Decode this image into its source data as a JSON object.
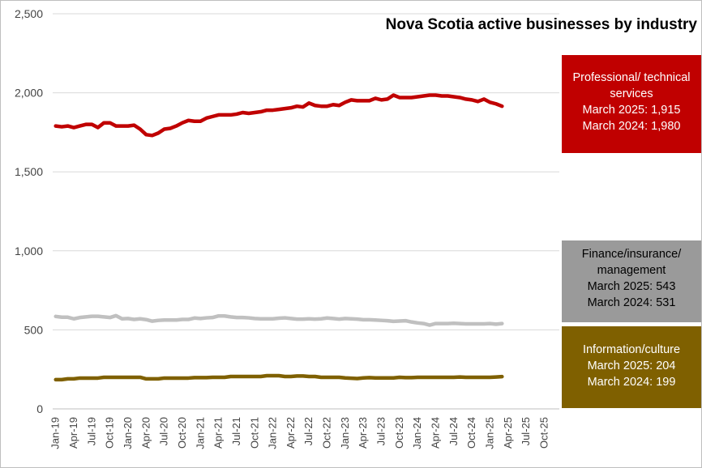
{
  "chart_data": {
    "type": "line",
    "title": "Nova Scotia active businesses by industry",
    "xlabel": "",
    "ylabel": "",
    "ylim": [
      0,
      2500
    ],
    "yticks": [
      0,
      500,
      1000,
      1500,
      2000,
      2500
    ],
    "ytick_labels": [
      "0",
      "500",
      "1,000",
      "1,500",
      "2,000",
      "2,500"
    ],
    "x_tick_labels": [
      "Jan-19",
      "Apr-19",
      "Jul-19",
      "Oct-19",
      "Jan-20",
      "Apr-20",
      "Jul-20",
      "Oct-20",
      "Jan-21",
      "Apr-21",
      "Jul-21",
      "Oct-21",
      "Jan-22",
      "Apr-22",
      "Jul-22",
      "Oct-22",
      "Jan-23",
      "Apr-23",
      "Jul-23",
      "Oct-23",
      "Jan-24",
      "Apr-24",
      "Jul-24",
      "Oct-24",
      "Jan-25",
      "Apr-25",
      "Jul-25",
      "Oct-25"
    ],
    "x_start": "Jan-19",
    "x_end": "Dec-25",
    "grid": "horizontal",
    "series": [
      {
        "name": "Professional/ technical services",
        "color": "#c00000",
        "values": [
          1790,
          1785,
          1790,
          1780,
          1790,
          1800,
          1800,
          1780,
          1810,
          1810,
          1790,
          1790,
          1790,
          1795,
          1770,
          1735,
          1730,
          1745,
          1770,
          1775,
          1790,
          1810,
          1825,
          1820,
          1820,
          1840,
          1850,
          1860,
          1860,
          1860,
          1865,
          1875,
          1870,
          1875,
          1880,
          1890,
          1890,
          1895,
          1900,
          1905,
          1915,
          1910,
          1935,
          1920,
          1915,
          1915,
          1925,
          1920,
          1940,
          1955,
          1950,
          1950,
          1950,
          1965,
          1955,
          1960,
          1985,
          1970,
          1970,
          1970,
          1975,
          1980,
          1985,
          1985,
          1980,
          1980,
          1975,
          1970,
          1960,
          1955,
          1945,
          1960,
          1940,
          1930,
          1915
        ]
      },
      {
        "name": "Finance/insurance/ management",
        "color": "#c0c0c0",
        "values": [
          585,
          580,
          580,
          570,
          578,
          582,
          586,
          586,
          582,
          578,
          590,
          570,
          572,
          566,
          570,
          565,
          555,
          560,
          562,
          562,
          562,
          566,
          566,
          575,
          572,
          576,
          578,
          588,
          588,
          582,
          578,
          578,
          576,
          572,
          570,
          570,
          570,
          574,
          576,
          572,
          568,
          568,
          570,
          568,
          570,
          575,
          572,
          568,
          572,
          570,
          568,
          564,
          564,
          562,
          560,
          558,
          554,
          556,
          558,
          550,
          544,
          540,
          530,
          540,
          540,
          540,
          542,
          540,
          538,
          538,
          538,
          538,
          540,
          536,
          540
        ]
      },
      {
        "name": "Information/culture",
        "color": "#7f6000",
        "values": [
          185,
          185,
          190,
          190,
          195,
          195,
          195,
          195,
          200,
          200,
          200,
          200,
          200,
          200,
          200,
          190,
          190,
          190,
          195,
          195,
          195,
          195,
          195,
          198,
          198,
          198,
          200,
          200,
          200,
          205,
          205,
          205,
          205,
          205,
          205,
          210,
          210,
          210,
          205,
          205,
          208,
          208,
          205,
          205,
          200,
          200,
          200,
          200,
          196,
          194,
          192,
          196,
          198,
          196,
          196,
          196,
          196,
          200,
          198,
          198,
          200,
          200,
          200,
          200,
          200,
          200,
          200,
          202,
          200,
          200,
          200,
          200,
          200,
          202,
          204
        ]
      }
    ]
  },
  "callouts": {
    "professional": {
      "line1": "Professional/ technical",
      "line2": "services",
      "line3": "March 2025: 1,915",
      "line4": "March 2024: 1,980"
    },
    "finance": {
      "line1": "Finance/insurance/",
      "line2": "management",
      "line3": "March 2025: 543",
      "line4": "March 2024: 531"
    },
    "information": {
      "line1": "Information/culture",
      "line2": "March 2025: 204",
      "line3": "March 2024: 199"
    }
  }
}
